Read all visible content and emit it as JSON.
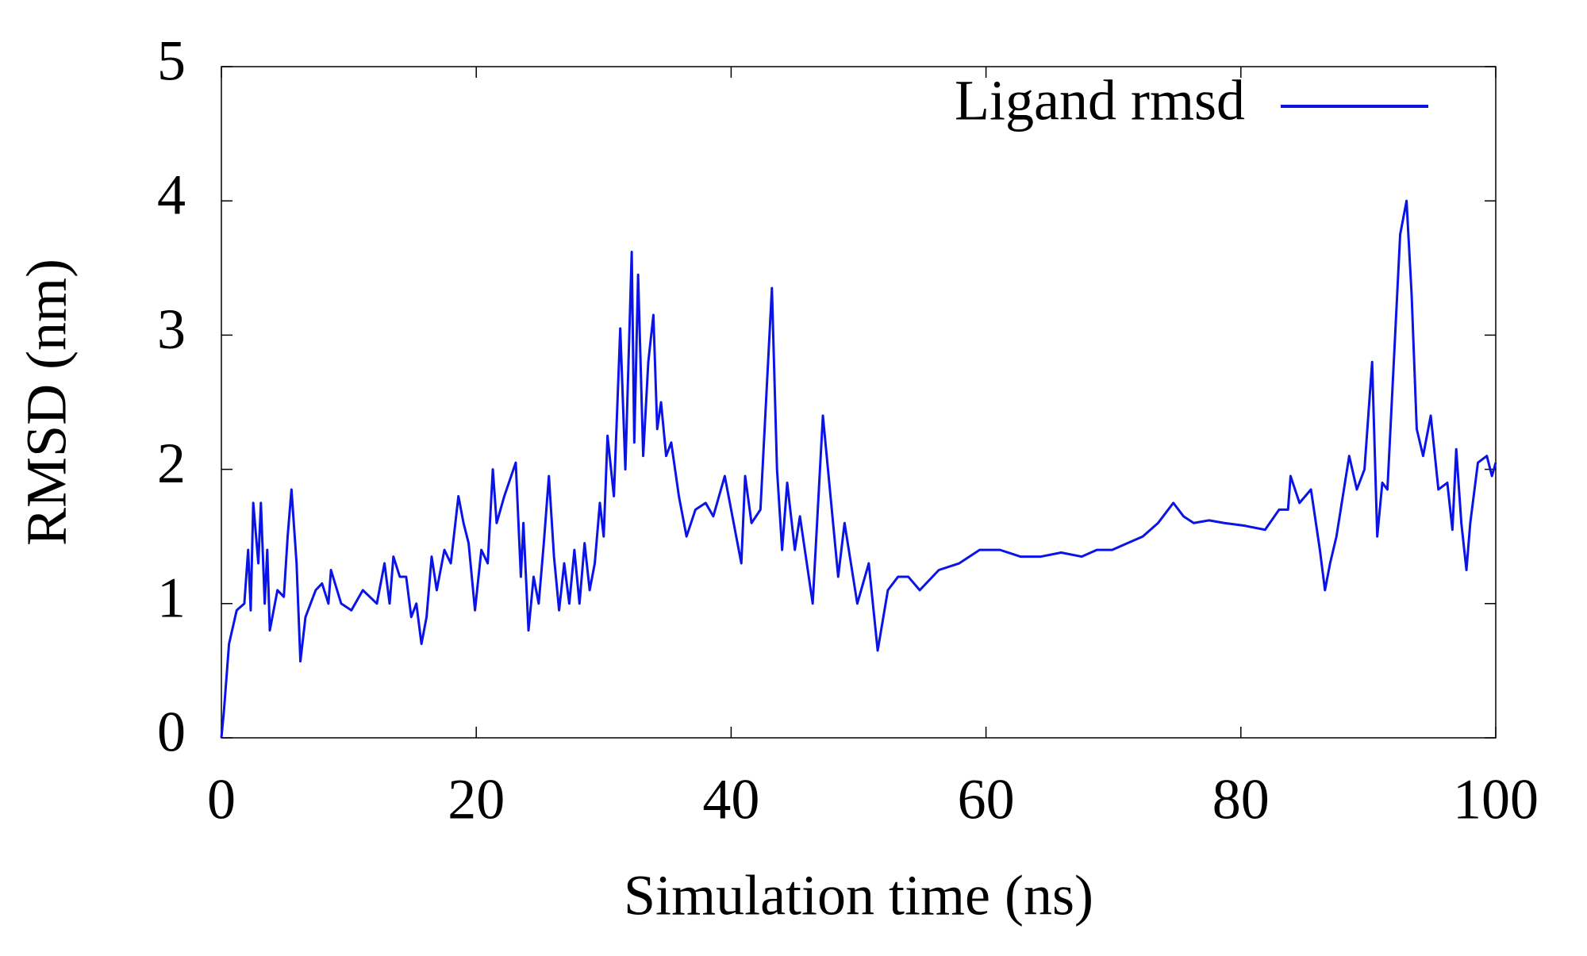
{
  "chart_data": {
    "type": "line",
    "x_label": "Simulation time (ns)",
    "y_label": "RMSD (nm)",
    "xlim": [
      0,
      100
    ],
    "xticks": [
      0,
      20,
      40,
      60,
      80,
      100
    ],
    "ylim": [
      0,
      5
    ],
    "yticks": [
      0,
      1,
      2,
      3,
      4,
      5
    ],
    "legend": "top-right",
    "series": [
      {
        "name": "Ligand rmsd",
        "color": "#0a14e6",
        "x": [
          0,
          0.2,
          0.6,
          1.2,
          1.8,
          2.1,
          2.3,
          2.5,
          2.9,
          3.1,
          3.4,
          3.6,
          3.8,
          4.4,
          4.9,
          5.2,
          5.5,
          5.9,
          6.2,
          6.6,
          7.4,
          7.9,
          8.4,
          8.6,
          9.4,
          10.2,
          11.1,
          12.2,
          12.8,
          13.2,
          13.5,
          14.0,
          14.5,
          14.9,
          15.3,
          15.7,
          16.1,
          16.5,
          16.9,
          17.5,
          18.0,
          18.6,
          19.0,
          19.4,
          19.9,
          20.4,
          20.9,
          21.3,
          21.6,
          22.2,
          23.1,
          23.5,
          23.7,
          24.1,
          24.5,
          24.9,
          25.3,
          25.7,
          26.1,
          26.5,
          26.9,
          27.3,
          27.7,
          28.1,
          28.5,
          28.9,
          29.3,
          29.7,
          30.0,
          30.3,
          30.8,
          31.3,
          31.7,
          32.2,
          32.4,
          32.7,
          33.1,
          33.5,
          33.9,
          34.2,
          34.5,
          34.9,
          35.3,
          35.9,
          36.5,
          37.2,
          38.0,
          38.6,
          39.5,
          40.0,
          40.8,
          41.1,
          41.6,
          42.3,
          43.2,
          43.6,
          44.0,
          44.4,
          45.0,
          45.4,
          46.4,
          47.2,
          48.0,
          48.4,
          48.9,
          49.9,
          50.8,
          51.5,
          52.3,
          53.1,
          53.9,
          54.8,
          56.3,
          57.9,
          59.5,
          61.1,
          62.7,
          64.3,
          65.9,
          67.5,
          68.7,
          69.9,
          71.1,
          72.3,
          73.5,
          74.7,
          75.5,
          76.3,
          77.5,
          78.7,
          80.3,
          81.9,
          83.0,
          83.7,
          83.9,
          84.6,
          85.5,
          86.2,
          86.6,
          87.0,
          87.5,
          88.0,
          88.5,
          89.1,
          89.7,
          90.3,
          90.7,
          91.1,
          91.5,
          92.0,
          92.5,
          93.0,
          93.4,
          93.8,
          94.3,
          94.9,
          95.5,
          96.2,
          96.6,
          96.9,
          97.3,
          97.7,
          98.0,
          98.6,
          99.3,
          99.7,
          100
        ],
        "values": [
          0,
          0.2,
          0.7,
          0.95,
          1.0,
          1.4,
          0.95,
          1.75,
          1.3,
          1.75,
          1.0,
          1.4,
          0.8,
          1.1,
          1.05,
          1.5,
          1.85,
          1.3,
          0.57,
          0.9,
          1.1,
          1.15,
          1.0,
          1.25,
          1.0,
          0.95,
          1.1,
          1.0,
          1.3,
          1.0,
          1.35,
          1.2,
          1.2,
          0.9,
          1.0,
          0.7,
          0.9,
          1.35,
          1.1,
          1.4,
          1.3,
          1.8,
          1.6,
          1.45,
          0.95,
          1.4,
          1.3,
          2.0,
          1.6,
          1.8,
          2.05,
          1.2,
          1.6,
          0.8,
          1.2,
          1.0,
          1.45,
          1.95,
          1.35,
          0.95,
          1.3,
          1.0,
          1.4,
          1.0,
          1.45,
          1.1,
          1.3,
          1.75,
          1.5,
          2.25,
          1.8,
          3.05,
          2.0,
          3.62,
          2.2,
          3.45,
          2.1,
          2.8,
          3.15,
          2.3,
          2.5,
          2.1,
          2.2,
          1.8,
          1.5,
          1.7,
          1.75,
          1.65,
          1.95,
          1.7,
          1.3,
          1.95,
          1.6,
          1.7,
          3.35,
          2.0,
          1.4,
          1.9,
          1.4,
          1.65,
          1.0,
          2.4,
          1.6,
          1.2,
          1.6,
          1.0,
          1.3,
          0.65,
          1.1,
          1.2,
          1.2,
          1.1,
          1.25,
          1.3,
          1.4,
          1.4,
          1.35,
          1.35,
          1.38,
          1.35,
          1.4,
          1.4,
          1.45,
          1.5,
          1.6,
          1.75,
          1.65,
          1.6,
          1.62,
          1.6,
          1.58,
          1.55,
          1.7,
          1.7,
          1.95,
          1.75,
          1.85,
          1.4,
          1.1,
          1.3,
          1.5,
          1.8,
          2.1,
          1.85,
          2.0,
          2.8,
          1.5,
          1.9,
          1.85,
          2.8,
          3.75,
          4.0,
          3.3,
          2.3,
          2.1,
          2.4,
          1.85,
          1.9,
          1.55,
          2.15,
          1.6,
          1.25,
          1.6,
          2.05,
          2.1,
          1.95,
          2.05
        ]
      }
    ]
  }
}
